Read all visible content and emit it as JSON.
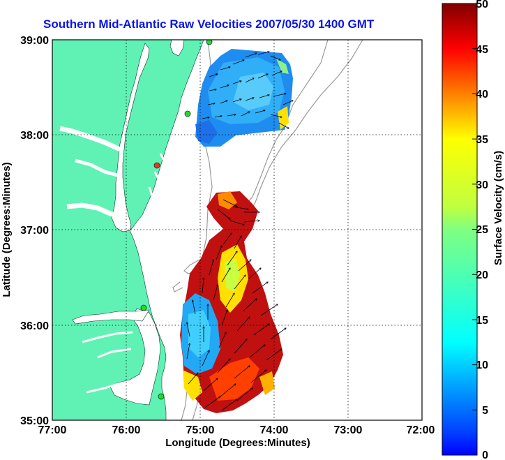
{
  "title": "Southern Mid-Atlantic Raw Velocities 2007/05/30 1400 GMT",
  "x_axis": {
    "label": "Longitude (Degrees:Minutes)",
    "ticks": [
      "77:00",
      "76:00",
      "75:00",
      "74:00",
      "73:00",
      "72:00"
    ]
  },
  "y_axis": {
    "label": "Latitude (Degrees:Minutes)",
    "ticks": [
      "39:00",
      "38:00",
      "37:00",
      "36:00",
      "35:00"
    ]
  },
  "colorbar": {
    "label": "Surface Velocity (cm/s)",
    "ticks": [
      "50",
      "45",
      "40",
      "35",
      "30",
      "25",
      "20",
      "15",
      "10",
      "5",
      "0"
    ],
    "colormap": "jet",
    "range": [
      0,
      50
    ]
  },
  "colors": {
    "title": "#0a14e6",
    "land": "#5ff2b4",
    "ocean": "#ffffff",
    "bathymetry": "#9a9a9a",
    "grid": "#000000"
  },
  "map": {
    "lon_range": [
      -77,
      -72
    ],
    "lat_range": [
      35,
      39
    ],
    "grid": "dotted"
  }
}
